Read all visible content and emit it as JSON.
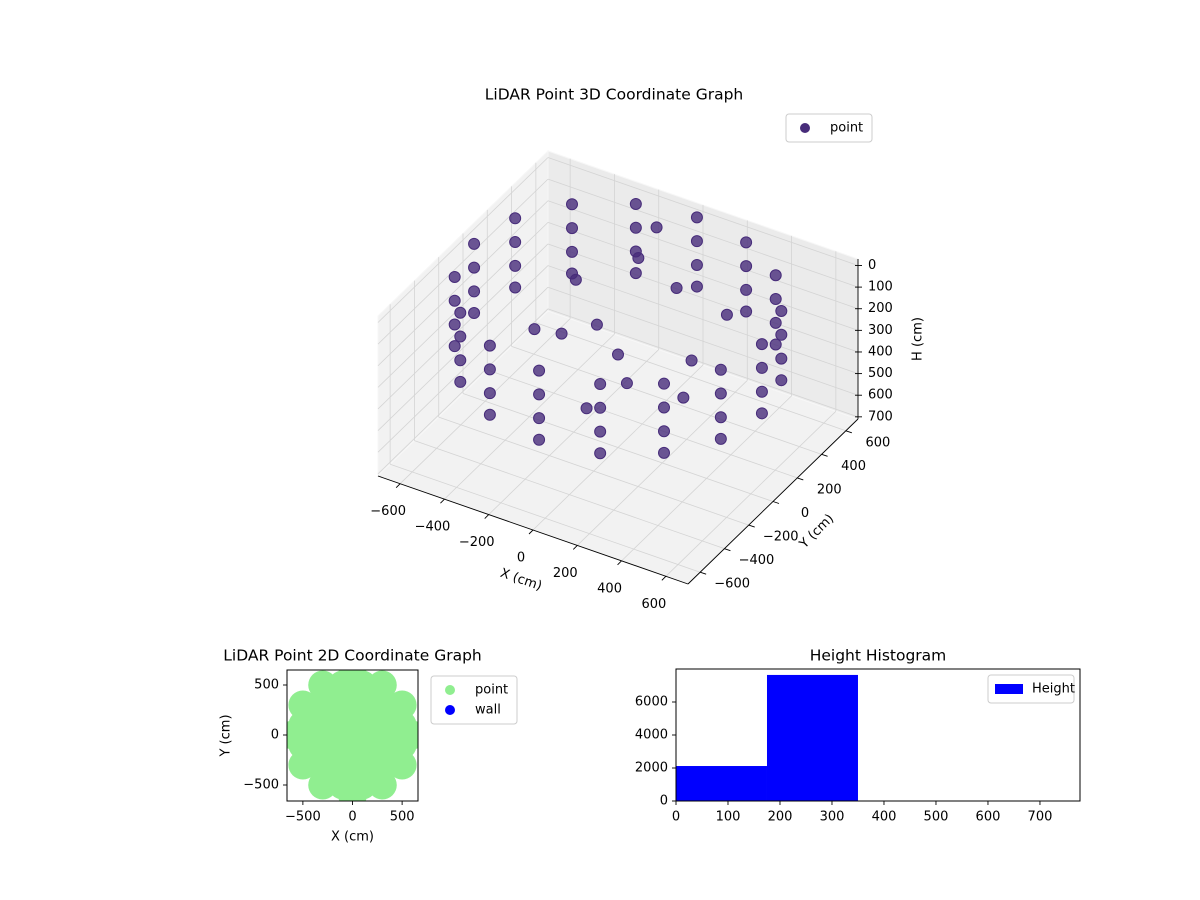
{
  "chart_data": [
    {
      "type": "scatter3d",
      "title": "LiDAR Point 3D Coordinate Graph",
      "xlabel": "X (cm)",
      "ylabel": "Y (cm)",
      "zlabel": "H (cm)",
      "xlim": [
        -700,
        700
      ],
      "ylim": [
        -700,
        700
      ],
      "zlim": [
        710,
        -30
      ],
      "xticks": [
        {
          "value": -600,
          "label": "−600"
        },
        {
          "value": -400,
          "label": "−400"
        },
        {
          "value": -200,
          "label": "−200"
        },
        0,
        200,
        400,
        600
      ],
      "yticks": [
        {
          "value": -600,
          "label": "−600"
        },
        {
          "value": -400,
          "label": "−400"
        },
        {
          "value": -200,
          "label": "−200"
        },
        0,
        200,
        400,
        600
      ],
      "zticks": [
        0,
        100,
        200,
        300,
        400,
        500,
        600,
        700
      ],
      "grid": true,
      "legend": "upper right",
      "series": [
        {
          "name": "point",
          "color": "#472c7a",
          "x": [
            650,
            601,
            460,
            249,
            0,
            -249,
            -460,
            -601,
            -650,
            -601,
            -460,
            -249,
            0,
            249,
            460,
            601,
            650,
            601,
            460,
            249,
            0,
            -249,
            -460,
            -601,
            -650,
            -601,
            -460,
            -249,
            0,
            249,
            460,
            601,
            650,
            601,
            460,
            249,
            0,
            -249,
            -460,
            -601,
            -650,
            -601,
            -460,
            -249,
            0,
            249,
            460,
            601,
            650,
            601,
            460,
            249,
            0,
            -249,
            -460,
            -601,
            -650,
            -601,
            -460,
            -249,
            0,
            249,
            460,
            601,
            -300,
            -150,
            100,
            250,
            -200,
            0,
            150,
            350,
            -350,
            300,
            -100,
            50,
            -100
          ],
          "y": [
            0,
            249,
            460,
            601,
            650,
            601,
            460,
            249,
            0,
            -249,
            -460,
            -601,
            -650,
            -601,
            -460,
            -249,
            0,
            249,
            460,
            601,
            650,
            601,
            460,
            249,
            0,
            -249,
            -460,
            -601,
            -650,
            -601,
            -460,
            -249,
            0,
            249,
            460,
            601,
            650,
            601,
            460,
            249,
            0,
            -249,
            -460,
            -601,
            -650,
            -601,
            -460,
            -249,
            0,
            249,
            460,
            601,
            650,
            601,
            460,
            249,
            0,
            -249,
            -460,
            -601,
            -650,
            -601,
            -460,
            -249,
            200,
            100,
            300,
            150,
            -100,
            0,
            -200,
            -100,
            -50,
            350,
            350,
            -350,
            500
          ],
          "z": [
            0,
            0,
            0,
            0,
            0,
            0,
            0,
            0,
            0,
            0,
            0,
            0,
            0,
            0,
            0,
            0,
            110,
            110,
            110,
            110,
            110,
            110,
            110,
            110,
            110,
            110,
            110,
            110,
            110,
            110,
            110,
            110,
            220,
            220,
            220,
            220,
            220,
            220,
            220,
            220,
            220,
            220,
            220,
            220,
            220,
            220,
            220,
            220,
            320,
            320,
            320,
            320,
            320,
            320,
            320,
            320,
            320,
            320,
            320,
            320,
            320,
            320,
            320,
            320,
            150,
            250,
            100,
            300,
            200,
            280,
            250,
            300,
            260,
            180,
            60,
            320,
            0
          ]
        }
      ]
    },
    {
      "type": "scatter",
      "title": "LiDAR Point 2D Coordinate Graph",
      "xlabel": "X (cm)",
      "ylabel": "Y (cm)",
      "xlim": [
        -660,
        660
      ],
      "ylim": [
        -660,
        650
      ],
      "xticks": [
        {
          "value": -500,
          "label": "−500"
        },
        0,
        500
      ],
      "yticks": [
        {
          "value": -500,
          "label": "−500"
        },
        0,
        500
      ],
      "legend": "outside right",
      "series": [
        {
          "name": "point",
          "color": "#90ee90",
          "x": [
            -300,
            -100,
            100,
            300,
            -500,
            -300,
            -100,
            100,
            300,
            500,
            -500,
            -300,
            -100,
            100,
            300,
            500,
            -500,
            -300,
            -100,
            100,
            300,
            500,
            -500,
            -300,
            -100,
            100,
            300,
            500,
            -300,
            -100,
            100,
            300,
            -600,
            600,
            0,
            0
          ],
          "y": [
            500,
            500,
            500,
            500,
            300,
            300,
            300,
            300,
            300,
            300,
            100,
            100,
            100,
            100,
            100,
            100,
            -100,
            -100,
            -100,
            -100,
            -100,
            -100,
            -300,
            -300,
            -300,
            -300,
            -300,
            -300,
            -500,
            -500,
            -500,
            -500,
            0,
            0,
            600,
            -600
          ]
        },
        {
          "name": "wall",
          "color": "#0000ff",
          "x": [],
          "y": []
        }
      ]
    },
    {
      "type": "histogram",
      "title": "Height Histogram",
      "bins": [
        0,
        175,
        350,
        525,
        700,
        875
      ],
      "xlim": [
        0,
        777
      ],
      "ylim": [
        0,
        8000
      ],
      "xticks": [
        0,
        100,
        200,
        300,
        400,
        500,
        600,
        700
      ],
      "yticks": [
        0,
        2000,
        4000,
        6000
      ],
      "legend": "upper right",
      "series": [
        {
          "name": "Height",
          "color": "#0000ff",
          "values": [
            2120,
            7640,
            0,
            0,
            0
          ]
        }
      ]
    }
  ]
}
